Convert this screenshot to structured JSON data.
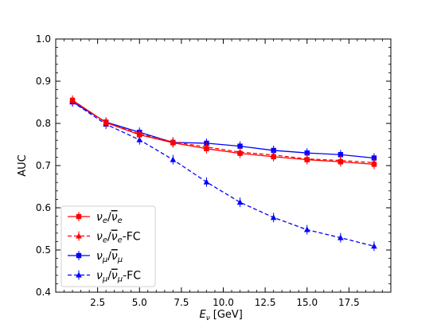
{
  "chart_data": {
    "type": "line",
    "xlabel_sym": "E",
    "xlabel_sub": "ν",
    "xlabel_unit": "[GeV]",
    "ylabel": "AUC",
    "xlim": [
      0,
      20
    ],
    "ylim": [
      0.4,
      1.0
    ],
    "xticks": [
      2.5,
      5.0,
      7.5,
      10.0,
      12.5,
      15.0,
      17.5
    ],
    "xtick_labels": [
      "2.5",
      "5.0",
      "7.5",
      "10.0",
      "12.5",
      "15.0",
      "17.5"
    ],
    "yticks": [
      0.4,
      0.5,
      0.6,
      0.7,
      0.8,
      0.9,
      1.0
    ],
    "ytick_labels": [
      "0.4",
      "0.5",
      "0.6",
      "0.7",
      "0.8",
      "0.9",
      "1.0"
    ],
    "legend_position": "lower-left",
    "x": [
      1,
      3,
      5,
      7,
      9,
      11,
      13,
      15,
      17,
      19
    ],
    "series": [
      {
        "label_parts": {
          "a": "ν",
          "a_sub": "e",
          "sep": "/",
          "b": "ν",
          "b_sub": "e",
          "suffix": ""
        },
        "color": "#ff0000",
        "linestyle": "solid",
        "marker": "square",
        "values": [
          0.855,
          0.802,
          0.773,
          0.754,
          0.74,
          0.729,
          0.721,
          0.714,
          0.709,
          0.703
        ]
      },
      {
        "label_parts": {
          "a": "ν",
          "a_sub": "e",
          "sep": "/",
          "b": "ν",
          "b_sub": "e",
          "suffix": "-FC"
        },
        "color": "#ff0000",
        "linestyle": "dashed",
        "marker": "triangle",
        "values": [
          0.855,
          0.802,
          0.775,
          0.756,
          0.744,
          0.732,
          0.725,
          0.716,
          0.712,
          0.707
        ]
      },
      {
        "label_parts": {
          "a": "ν",
          "a_sub": "μ",
          "sep": "/",
          "b": "ν",
          "b_sub": "μ",
          "suffix": ""
        },
        "color": "#0000ff",
        "linestyle": "solid",
        "marker": "square",
        "values": [
          0.851,
          0.803,
          0.779,
          0.755,
          0.753,
          0.746,
          0.736,
          0.73,
          0.726,
          0.718
        ]
      },
      {
        "label_parts": {
          "a": "ν",
          "a_sub": "μ",
          "sep": "/",
          "b": "ν",
          "b_sub": "μ",
          "suffix": "-FC"
        },
        "color": "#0000ff",
        "linestyle": "dashed",
        "marker": "triangle",
        "values": [
          0.851,
          0.798,
          0.761,
          0.714,
          0.661,
          0.613,
          0.577,
          0.548,
          0.529,
          0.509
        ]
      }
    ]
  }
}
